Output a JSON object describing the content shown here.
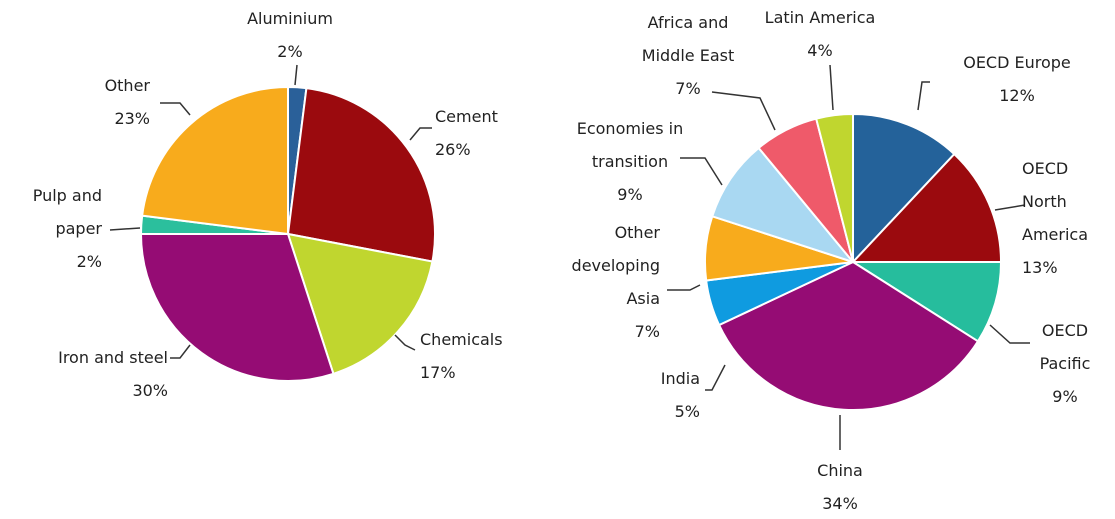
{
  "chart_data": [
    {
      "type": "pie",
      "categories": [
        "Aluminium",
        "Cement",
        "Chemicals",
        "Iron and steel",
        "Pulp and paper",
        "Other"
      ],
      "values": [
        2,
        26,
        17,
        30,
        2,
        23
      ],
      "value_labels": [
        "2%",
        "26%",
        "17%",
        "30%",
        "2%",
        "23%"
      ],
      "colors": [
        "#2a6099",
        "#9b0a0e",
        "#c0d62f",
        "#950c74",
        "#2bbf9d",
        "#f8ab1c"
      ]
    },
    {
      "type": "pie",
      "categories": [
        "OECD Europe",
        "OECD North America",
        "OECD Pacific",
        "China",
        "India",
        "Other developing Asia",
        "Economies in transition",
        "Africa and Middle East",
        "Latin America"
      ],
      "values": [
        12,
        13,
        9,
        34,
        5,
        7,
        9,
        7,
        4
      ],
      "value_labels": [
        "12%",
        "13%",
        "9%",
        "34%",
        "5%",
        "7%",
        "9%",
        "7%",
        "4%"
      ],
      "colors": [
        "#24629a",
        "#9b0a0e",
        "#26bd9d",
        "#950c74",
        "#0f9be0",
        "#f8ab1c",
        "#a9d8f2",
        "#ef5a6a",
        "#c0d62f"
      ]
    }
  ]
}
